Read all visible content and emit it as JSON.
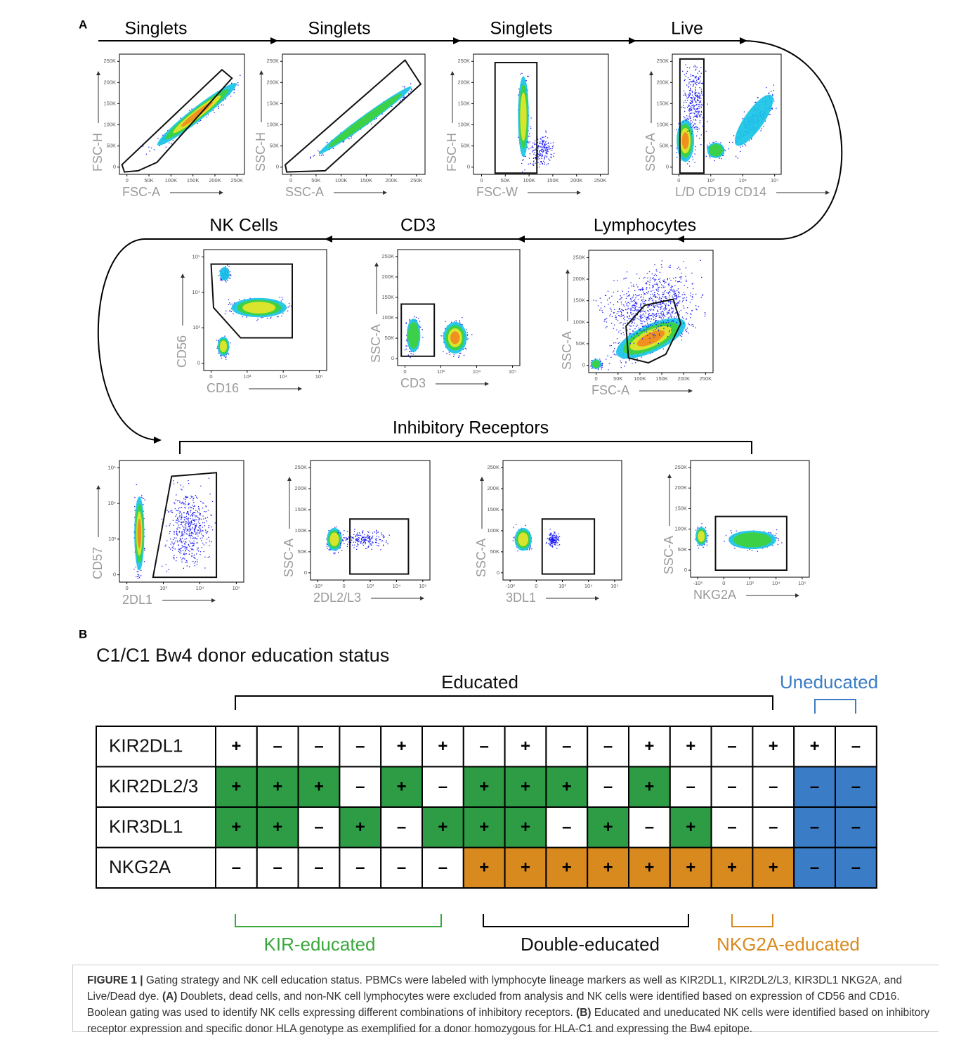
{
  "panel_a": {
    "label": "A",
    "steps": [
      {
        "title": "Singlets",
        "x_label": "FSC-A",
        "y_label": "FSC-H",
        "x_ticks": [
          "0",
          "50K",
          "100K",
          "150K",
          "200K",
          "250K"
        ],
        "y_ticks": [
          "0",
          "50K",
          "100K",
          "150K",
          "200K",
          "250K"
        ]
      },
      {
        "title": "Singlets",
        "x_label": "SSC-A",
        "y_label": "SSC-H",
        "x_ticks": [
          "0",
          "50K",
          "100K",
          "150K",
          "200K",
          "250K"
        ],
        "y_ticks": [
          "0",
          "50K",
          "100K",
          "150K",
          "200K",
          "250K"
        ]
      },
      {
        "title": "Singlets",
        "x_label": "FSC-W",
        "y_label": "FSC-H",
        "x_ticks": [
          "0",
          "50K",
          "100K",
          "150K",
          "200K",
          "250K"
        ],
        "y_ticks": [
          "0",
          "50K",
          "100K",
          "150K",
          "200K",
          "250K"
        ]
      },
      {
        "title": "Live",
        "x_label": "L/D CD19 CD14",
        "y_label": "SSC-A",
        "x_ticks": [
          "0",
          "10³",
          "10⁴",
          "10⁵"
        ],
        "y_ticks": [
          "0",
          "50K",
          "100K",
          "150K",
          "200K",
          "250K"
        ]
      },
      {
        "title": "Lymphocytes",
        "x_label": "FSC-A",
        "y_label": "SSC-A",
        "x_ticks": [
          "0",
          "50K",
          "100K",
          "150K",
          "200K",
          "250K"
        ],
        "y_ticks": [
          "0",
          "50K",
          "100K",
          "150K",
          "200K",
          "250K"
        ]
      },
      {
        "title": "CD3",
        "x_label": "CD3",
        "y_label": "SSC-A",
        "x_ticks": [
          "0",
          "10³",
          "10⁴",
          "10⁵"
        ],
        "y_ticks": [
          "0",
          "50K",
          "100K",
          "150K",
          "200K",
          "250K"
        ]
      },
      {
        "title": "NK Cells",
        "x_label": "CD16",
        "y_label": "CD56",
        "x_ticks": [
          "0",
          "10³",
          "10⁴",
          "10⁵"
        ],
        "y_ticks": [
          "0",
          "10³",
          "10⁴",
          "10⁵"
        ]
      }
    ],
    "inhibitory": {
      "title": "Inhibitory Receptors",
      "plots": [
        {
          "x_label": "2DL1",
          "y_label": "CD57",
          "x_ticks": [
            "0",
            "10³",
            "10⁴",
            "10⁵"
          ],
          "y_ticks": [
            "0",
            "10³",
            "10⁴",
            "10⁵"
          ]
        },
        {
          "x_label": "2DL2/L3",
          "y_label": "SSC-A",
          "x_ticks": [
            "-10³",
            "0",
            "10³",
            "10⁴",
            "10⁵"
          ],
          "y_ticks": [
            "0",
            "50K",
            "100K",
            "150K",
            "200K",
            "250K"
          ]
        },
        {
          "x_label": "3DL1",
          "y_label": "SSC-A",
          "x_ticks": [
            "-10³",
            "0",
            "10³",
            "10⁴",
            "10⁵"
          ],
          "y_ticks": [
            "0",
            "50K",
            "100K",
            "150K",
            "200K",
            "250K"
          ]
        },
        {
          "x_label": "NKG2A",
          "y_label": "SSC-A",
          "x_ticks": [
            "-10³",
            "0",
            "10³",
            "10⁴",
            "10⁵"
          ],
          "y_ticks": [
            "0",
            "50K",
            "100K",
            "150K",
            "200K",
            "250K"
          ]
        }
      ]
    }
  },
  "panel_b": {
    "label": "B",
    "title": "C1/C1 Bw4 donor education status",
    "educated": "Educated",
    "uneducated": "Uneducated",
    "colors": {
      "green": "#2e9b45",
      "orange": "#d98a1f",
      "blue": "#3a7cc6",
      "white": "#ffffff"
    },
    "rows": [
      {
        "label": "KIR2DL1",
        "cells": [
          "+",
          "–",
          "–",
          "–",
          "+",
          "+",
          "–",
          "+",
          "–",
          "–",
          "+",
          "+",
          "–",
          "+",
          "+",
          "–"
        ],
        "fills": [
          "white",
          "white",
          "white",
          "white",
          "white",
          "white",
          "white",
          "white",
          "white",
          "white",
          "white",
          "white",
          "white",
          "white",
          "white",
          "white"
        ]
      },
      {
        "label": "KIR2DL2/3",
        "cells": [
          "+",
          "+",
          "+",
          "–",
          "+",
          "–",
          "+",
          "+",
          "+",
          "–",
          "+",
          "–",
          "–",
          "–",
          "–",
          "–"
        ],
        "fills": [
          "green",
          "green",
          "green",
          "white",
          "green",
          "white",
          "green",
          "green",
          "green",
          "white",
          "green",
          "white",
          "white",
          "white",
          "blue",
          "blue"
        ]
      },
      {
        "label": "KIR3DL1",
        "cells": [
          "+",
          "+",
          "–",
          "+",
          "–",
          "+",
          "+",
          "+",
          "–",
          "+",
          "–",
          "+",
          "–",
          "–",
          "–",
          "–"
        ],
        "fills": [
          "green",
          "green",
          "white",
          "green",
          "white",
          "green",
          "green",
          "green",
          "white",
          "green",
          "white",
          "green",
          "white",
          "white",
          "blue",
          "blue"
        ]
      },
      {
        "label": "NKG2A",
        "cells": [
          "–",
          "–",
          "–",
          "–",
          "–",
          "–",
          "+",
          "+",
          "+",
          "+",
          "+",
          "+",
          "+",
          "+",
          "–",
          "–"
        ],
        "fills": [
          "white",
          "white",
          "white",
          "white",
          "white",
          "white",
          "orange",
          "orange",
          "orange",
          "orange",
          "orange",
          "orange",
          "orange",
          "orange",
          "blue",
          "blue"
        ]
      }
    ],
    "groups": [
      "KIR-educated",
      "Double-educated",
      "NKG2A-educated"
    ]
  },
  "caption": {
    "label": "FIGURE 1 |",
    "text_1": "Gating strategy and NK cell education status. PBMCs were labeled with lymphocyte lineage markers as well as KIR2DL1, KIR2DL2/L3, KIR3DL1 NKG2A, and Live/Dead dye.",
    "ref_a": "(A)",
    "text_2": "Doublets, dead cells, and non-NK cell lymphocytes were excluded from analysis and NK cells were identified based on expression of CD56 and CD16. Boolean gating was used to identify NK cells expressing different combinations of inhibitory receptors.",
    "ref_b": "(B)",
    "text_3": "Educated and uneducated NK cells were identified based on inhibitory receptor expression and specific donor HLA genotype as exemplified for a donor homozygous for HLA-C1 and expressing the Bw4 epitope."
  }
}
